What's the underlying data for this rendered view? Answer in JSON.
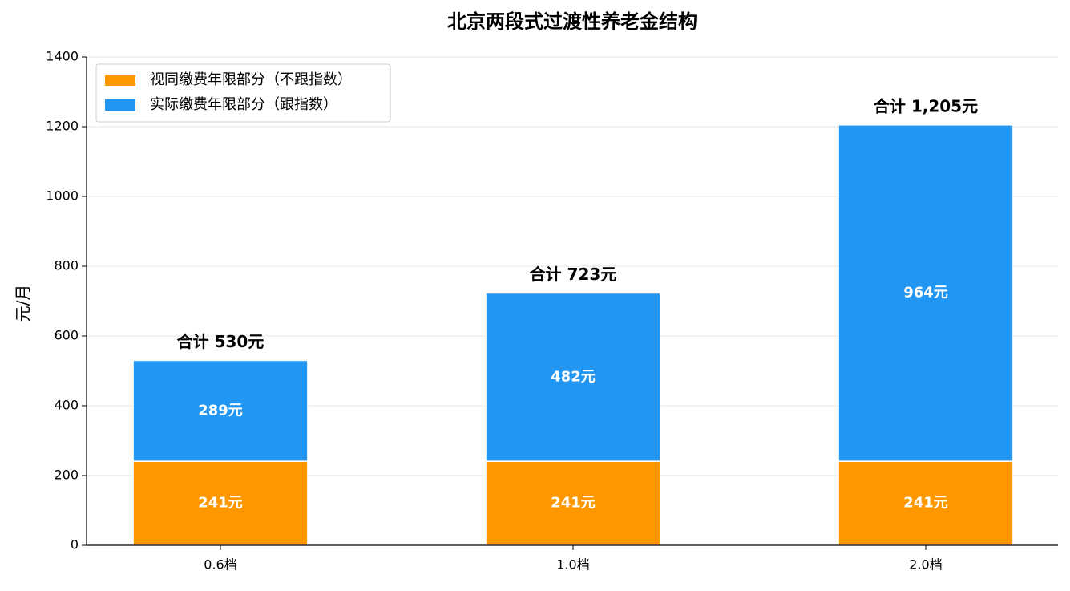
{
  "chart_data": {
    "type": "stacked_bar",
    "title": "北京两段式过渡性养老金结构",
    "y_label": "元/月",
    "categories": [
      "0.6档",
      "1.0档",
      "2.0档"
    ],
    "series": [
      {
        "name": "视同缴费年限部分（不跟指数）",
        "color": "#ff9800",
        "values": [
          241,
          241,
          241
        ],
        "value_labels": [
          "241元",
          "241元",
          "241元"
        ]
      },
      {
        "name": "实际缴费年限部分（跟指数）",
        "color": "#2196f3",
        "values": [
          289,
          482,
          964
        ],
        "value_labels": [
          "289元",
          "482元",
          "964元"
        ]
      }
    ],
    "total_labels": [
      "合计 530元",
      "合计 723元",
      "合计 1,205元"
    ],
    "ylim": [
      0,
      1400
    ],
    "yticks": [
      0,
      200,
      400,
      600,
      800,
      1000,
      1200,
      1400
    ],
    "grid": true,
    "legend": "upper-left"
  }
}
